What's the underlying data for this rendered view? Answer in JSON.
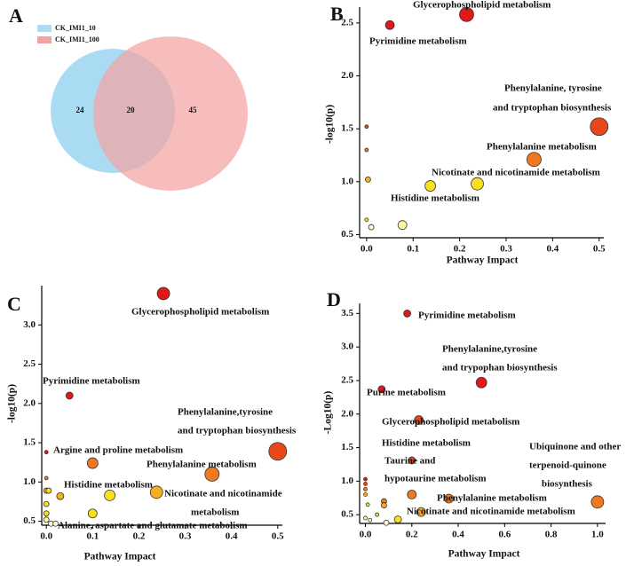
{
  "chart_data": [
    {
      "type": "venn",
      "panel": "A",
      "sets": [
        {
          "name": "CK_IMI1_10",
          "color": "#a9dcf3"
        },
        {
          "name": "CK_IMI1_100",
          "color": "#f4a3a3"
        }
      ],
      "values": [
        24,
        20,
        45
      ]
    },
    {
      "type": "scatter",
      "panel": "B",
      "xlabel": "Pathway Impact",
      "ylabel": "-log10(p)",
      "xlim": [
        -0.015,
        0.51
      ],
      "ylim": [
        0.47,
        2.65
      ],
      "xticks": [
        {
          "value": 0,
          "label": "0.0"
        },
        0.1,
        0.2,
        0.3,
        0.4,
        0.5
      ],
      "yticks": [
        0.5,
        {
          "value": 1,
          "label": "1.0"
        },
        1.5,
        {
          "value": 2,
          "label": "2.0"
        },
        2.5
      ],
      "x": [
        0.215,
        0.05,
        0.5,
        0.36,
        0.238,
        0.137,
        0,
        0,
        0.003,
        0,
        0.01,
        0.077
      ],
      "y": [
        2.58,
        2.48,
        1.52,
        1.21,
        0.98,
        0.96,
        1.52,
        1.3,
        1.02,
        0.64,
        0.57,
        0.59
      ],
      "sizes": [
        8,
        5,
        10,
        8,
        7,
        6,
        2,
        2,
        3,
        2,
        3,
        5
      ],
      "colors": [
        "#e01818",
        "#e01818",
        "#e84818",
        "#f07820",
        "#f8e020",
        "#f8e020",
        "#e84818",
        "#f07820",
        "#f5b020",
        "#f8e020",
        "#fffbd0",
        "#fff8a0"
      ],
      "labels": [
        [
          "Glycerophospholipid metabolism"
        ],
        [
          "Pyrimidine metabolism"
        ],
        [
          "Phenylalanine, tyrosine",
          "and tryptophan biosynthesis"
        ],
        [
          "Phenylalanine metabolism"
        ],
        [
          "Nicotinate and nicotinamide metabolism"
        ],
        [
          "Histidine metabolism"
        ],
        null,
        null,
        null,
        null,
        null,
        null
      ]
    },
    {
      "type": "scatter",
      "panel": "C",
      "xlabel": "Pathway Impact",
      "ylabel": "-log10(p)",
      "xlim": [
        -0.01,
        0.51
      ],
      "ylim": [
        0.45,
        3.5
      ],
      "xticks": [
        {
          "value": 0,
          "label": "0.0"
        },
        0.1,
        0.2,
        0.3,
        0.4,
        0.5
      ],
      "yticks": [
        0.5,
        {
          "value": 1,
          "label": "1.0"
        },
        1.5,
        {
          "value": 2,
          "label": "2.0"
        },
        2.5,
        {
          "value": 3,
          "label": "3.0"
        }
      ],
      "x": [
        0.253,
        0.05,
        0.5,
        0.358,
        0.238,
        0.137,
        0.1,
        0.1,
        0,
        0,
        0,
        0.005,
        0.03,
        0,
        0,
        0,
        0.01,
        0.02
      ],
      "y": [
        3.4,
        2.1,
        1.39,
        1.1,
        0.87,
        0.83,
        1.24,
        0.6,
        1.38,
        1.05,
        0.89,
        0.89,
        0.82,
        0.72,
        0.6,
        0.52,
        0.47,
        0.47
      ],
      "sizes": [
        7,
        4,
        10,
        8,
        7,
        6,
        6,
        5,
        2,
        2,
        3,
        3,
        4,
        3,
        3,
        3,
        3,
        3
      ],
      "colors": [
        "#e01818",
        "#e01818",
        "#e84818",
        "#f07820",
        "#f5b020",
        "#f8e020",
        "#f07820",
        "#f8e020",
        "#e01818",
        "#f07820",
        "#f5b020",
        "#f8e020",
        "#f5b020",
        "#f8e020",
        "#f8e020",
        "#fff8a0",
        "#fffbd0",
        "#fffbd0"
      ],
      "labels": [
        [
          "Glycerophospholipid metabolism"
        ],
        [
          "Pyrimidine metabolism"
        ],
        [
          "Phenylalanine,tyrosine",
          "and tryptophan biosynthesis"
        ],
        [
          "Phenylalanine metabolism"
        ],
        [
          "Nicotinate and nicotinamide",
          "metabolism"
        ],
        [
          "Histidine metabolism"
        ],
        [
          "Argine and proline metabolism"
        ],
        [
          "Alanine, aspartate and glutamate metabolism"
        ],
        null,
        null,
        null,
        null,
        null,
        null,
        null,
        null,
        null,
        null
      ]
    },
    {
      "type": "scatter",
      "panel": "D",
      "xlabel": "Pathway Impact",
      "ylabel": "-Log10(p)",
      "xlim": [
        -0.025,
        1.035
      ],
      "ylim": [
        0.37,
        3.65
      ],
      "xticks": [
        {
          "value": 0,
          "label": "0.0"
        },
        0.2,
        0.4,
        0.6,
        0.8,
        {
          "value": 1,
          "label": "1.0"
        }
      ],
      "yticks": [
        0.5,
        {
          "value": 1,
          "label": "1.0"
        },
        1.5,
        {
          "value": 2,
          "label": "2.0"
        },
        2.5,
        {
          "value": 3,
          "label": "3.0"
        },
        3.5
      ],
      "x": [
        0.18,
        0.5,
        0.07,
        0.23,
        0.2,
        0.2,
        0.36,
        0.24,
        1.0,
        0,
        0,
        0,
        0,
        0.08,
        0.08,
        0.01,
        0.14,
        0.09,
        0,
        0.02,
        0.05
      ],
      "y": [
        3.5,
        2.47,
        2.37,
        1.91,
        1.31,
        0.8,
        0.74,
        0.54,
        0.69,
        1.03,
        0.96,
        0.88,
        0.8,
        0.7,
        0.64,
        0.65,
        0.43,
        0.38,
        0.45,
        0.42,
        0.5
      ],
      "sizes": [
        4,
        6,
        4,
        5,
        4,
        5,
        5,
        5,
        7,
        2,
        2,
        2,
        2,
        3,
        3,
        2,
        4,
        3,
        2,
        2,
        2
      ],
      "colors": [
        "#e01818",
        "#e01818",
        "#e01818",
        "#e84818",
        "#e84818",
        "#f07820",
        "#f07820",
        "#f5b020",
        "#f07820",
        "#e01818",
        "#e84818",
        "#f07820",
        "#f5b020",
        "#f07820",
        "#f5b020",
        "#f8e020",
        "#f8e020",
        "#fffbd0",
        "#fff8a0",
        "#fff8a0",
        "#f8e020"
      ],
      "labels": [
        [
          "Pyrimidine metabolism"
        ],
        [
          "Phenylalanine,tyrosine",
          "and trypophan biosynthesis"
        ],
        [
          "Purine metabolism"
        ],
        [
          "Glycerophospholipid metabolism"
        ],
        [
          "Histidine metabolism"
        ],
        [
          "Taurine and",
          "hypotaurine metabolism"
        ],
        [
          "Phenylalanine metabolism"
        ],
        [
          "Nicotinate and nicotinamide metabolism"
        ],
        [
          "Ubiquinone and other",
          "terpenoid-quinone",
          "biosynthesis"
        ],
        null,
        null,
        null,
        null,
        null,
        null,
        null,
        null,
        null,
        null,
        null,
        null
      ]
    }
  ]
}
